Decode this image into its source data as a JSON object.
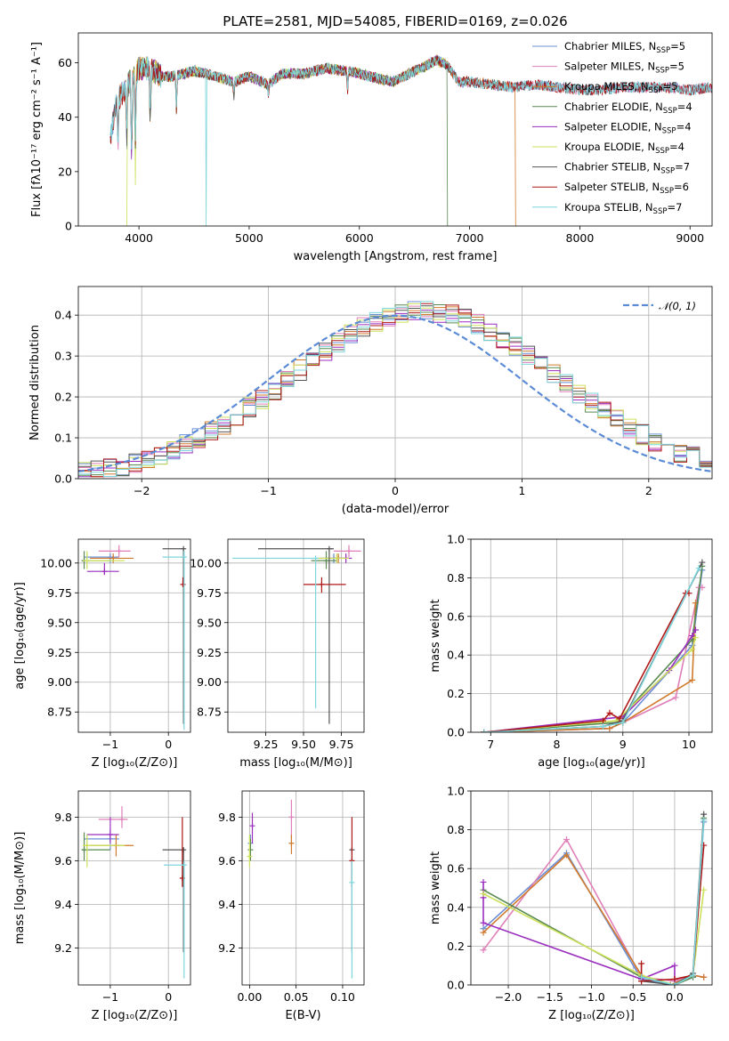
{
  "figure": {
    "title": "PLATE=2581, MJD=54085, FIBERID=0169, z=0.026"
  },
  "series": [
    {
      "key": "chab_miles",
      "name": "Chabrier MILES, N",
      "sub": "SSP",
      "n": "=5",
      "color": "#6b8fd6"
    },
    {
      "key": "salp_miles",
      "name": "Salpeter MILES, N",
      "sub": "SSP",
      "n": "=5",
      "color": "#e07fb8"
    },
    {
      "key": "krou_miles",
      "name": "Kroupa MILES, N",
      "sub": "SSP",
      "n": "=5",
      "color": "#d07a2e"
    },
    {
      "key": "chab_elodie",
      "name": "Chabrier ELODIE, N",
      "sub": "SSP",
      "n": "=4",
      "color": "#5a8a52"
    },
    {
      "key": "salp_elodie",
      "name": "Salpeter ELODIE, N",
      "sub": "SSP",
      "n": "=4",
      "color": "#9b2fbf"
    },
    {
      "key": "krou_elodie",
      "name": "Kroupa ELODIE, N",
      "sub": "SSP",
      "n": "=4",
      "color": "#cce05a"
    },
    {
      "key": "chab_stelib",
      "name": "Chabrier STELIB, N",
      "sub": "SSP",
      "n": "=7",
      "color": "#555555"
    },
    {
      "key": "salp_stelib",
      "name": "Salpeter STELIB, N",
      "sub": "SSP",
      "n": "=6",
      "color": "#b01818"
    },
    {
      "key": "krou_stelib",
      "name": "Kroupa STELIB, N",
      "sub": "SSP",
      "n": "=7",
      "color": "#7dd6dc"
    }
  ],
  "chart_data": [
    {
      "id": "spectrum",
      "type": "line",
      "xlabel": "wavelength [Angstrom, rest frame]",
      "ylabel": "Flux [fλ10⁻¹⁷ erg cm⁻² s⁻¹ A⁻¹]",
      "xlim": [
        3450,
        9200
      ],
      "ylim": [
        0,
        71
      ],
      "xticks": [
        4000,
        5000,
        6000,
        7000,
        8000,
        9000
      ],
      "yticks": [
        0,
        20,
        40,
        60
      ],
      "legend_position": "top-right",
      "grid": false,
      "continuum": [
        [
          3740,
          33
        ],
        [
          3800,
          46
        ],
        [
          3900,
          52
        ],
        [
          4000,
          58
        ],
        [
          4100,
          58
        ],
        [
          4200,
          55
        ],
        [
          4300,
          55
        ],
        [
          4500,
          57
        ],
        [
          4700,
          55
        ],
        [
          4861,
          53
        ],
        [
          5000,
          55
        ],
        [
          5175,
          52
        ],
        [
          5300,
          56
        ],
        [
          5500,
          56
        ],
        [
          5700,
          58
        ],
        [
          5893,
          57
        ],
        [
          6100,
          55
        ],
        [
          6300,
          53
        ],
        [
          6500,
          57
        ],
        [
          6563,
          58
        ],
        [
          6700,
          61
        ],
        [
          6800,
          59
        ],
        [
          6900,
          53
        ],
        [
          7000,
          53
        ],
        [
          7200,
          52
        ],
        [
          7400,
          51
        ],
        [
          7600,
          52
        ],
        [
          7800,
          51
        ],
        [
          8000,
          50
        ],
        [
          8200,
          50
        ],
        [
          8400,
          51
        ],
        [
          8600,
          51
        ],
        [
          8800,
          51
        ],
        [
          9000,
          50
        ],
        [
          9200,
          51
        ]
      ],
      "absorption_lines": [
        [
          3810,
          30
        ],
        [
          3889,
          32
        ],
        [
          3934,
          26
        ],
        [
          3968,
          28
        ],
        [
          4102,
          40
        ],
        [
          4340,
          43
        ],
        [
          4861,
          48
        ],
        [
          5175,
          49
        ],
        [
          5893,
          50
        ]
      ],
      "dropouts": {
        "krou_elodie": [
          [
            3890,
            0
          ],
          [
            3968,
            15
          ]
        ],
        "krou_stelib": [
          [
            4610,
            0
          ]
        ],
        "chab_elodie": [
          [
            6800,
            0
          ]
        ],
        "krou_miles": [
          [
            7420,
            0
          ]
        ]
      },
      "coverage": {
        "chab_miles": [
          3740,
          9200
        ],
        "salp_miles": [
          3740,
          9200
        ],
        "krou_miles": [
          3740,
          7420
        ],
        "chab_elodie": [
          3890,
          6800
        ],
        "salp_elodie": [
          3890,
          6800
        ],
        "krou_elodie": [
          3890,
          6800
        ],
        "chab_stelib": [
          3740,
          9200
        ],
        "salp_stelib": [
          3740,
          9200
        ],
        "krou_stelib": [
          3740,
          9200
        ]
      }
    },
    {
      "id": "residuals",
      "type": "line",
      "xlabel": "(data-model)/error",
      "ylabel": "Normed distribution",
      "xlim": [
        -2.5,
        2.5
      ],
      "ylim": [
        0,
        0.47
      ],
      "xticks": [
        -2,
        -1,
        0,
        1,
        2
      ],
      "yticks": [
        0.0,
        0.1,
        0.2,
        0.3,
        0.4
      ],
      "grid": true,
      "legend": "𝒩(0, 1)",
      "legend_position": "top-right",
      "gaussian": {
        "mean": 0,
        "sigma": 1,
        "color": "#5b8bd6"
      },
      "bin_width": 0.1,
      "bin_start": -2.5
    },
    {
      "id": "age_vs_Z",
      "type": "scatter",
      "xlabel": "Z [log₁₀(Z/Z⊙)]",
      "ylabel": "age  [log₁₀(age/yr)]",
      "xlim": [
        -1.55,
        0.38
      ],
      "ylim": [
        8.58,
        10.2
      ],
      "xticks": [
        -1,
        0
      ],
      "yticks": [
        8.75,
        9.0,
        9.25,
        9.5,
        9.75,
        10.0
      ],
      "grid": true,
      "points": [
        {
          "s": "chab_miles",
          "x": -1.0,
          "y": 10.05,
          "xl": -1.45,
          "xh": -0.85,
          "yl": 10.0,
          "yh": 10.08
        },
        {
          "s": "salp_miles",
          "x": -0.85,
          "y": 10.1,
          "xl": -1.2,
          "xh": -0.65,
          "yl": 10.05,
          "yh": 10.15
        },
        {
          "s": "krou_miles",
          "x": -0.95,
          "y": 10.04,
          "xl": -1.35,
          "xh": -0.6,
          "yl": 10.0,
          "yh": 10.08
        },
        {
          "s": "chab_elodie",
          "x": -1.45,
          "y": 10.02,
          "xl": -1.48,
          "xh": -1.0,
          "yl": 9.95,
          "yh": 10.1
        },
        {
          "s": "salp_elodie",
          "x": -1.1,
          "y": 9.93,
          "xl": -1.4,
          "xh": -0.85,
          "yl": 9.9,
          "yh": 10.0
        },
        {
          "s": "krou_elodie",
          "x": -1.4,
          "y": 10.02,
          "xl": -1.47,
          "xh": -0.75,
          "yl": 9.95,
          "yh": 10.1
        },
        {
          "s": "chab_stelib",
          "x": 0.26,
          "y": 10.12,
          "xl": -0.1,
          "xh": 0.28,
          "yl": 8.65,
          "yh": 10.12
        },
        {
          "s": "salp_stelib",
          "x": 0.25,
          "y": 9.82,
          "xl": 0.24,
          "xh": 0.27,
          "yl": 9.8,
          "yh": 9.88
        },
        {
          "s": "krou_stelib",
          "x": 0.27,
          "y": 10.05,
          "xl": -0.1,
          "xh": 0.28,
          "yl": 8.6,
          "yh": 10.1
        }
      ]
    },
    {
      "id": "age_vs_mass",
      "type": "scatter",
      "xlabel": "mass [log₁₀(M/M⊙)]",
      "ylabel": "",
      "xlim": [
        9.0,
        9.9
      ],
      "ylim": [
        8.58,
        10.2
      ],
      "xticks": [
        9.25,
        9.5,
        9.75
      ],
      "yticks": [
        8.75,
        9.0,
        9.25,
        9.5,
        9.75,
        10.0
      ],
      "grid": true,
      "points": [
        {
          "s": "chab_miles",
          "x": 9.7,
          "y": 10.04,
          "xl": 9.6,
          "xh": 9.8,
          "yl": 10.0,
          "yh": 10.08
        },
        {
          "s": "salp_miles",
          "x": 9.8,
          "y": 10.1,
          "xl": 9.7,
          "xh": 9.88,
          "yl": 10.05,
          "yh": 10.15
        },
        {
          "s": "krou_miles",
          "x": 9.73,
          "y": 10.04,
          "xl": 9.6,
          "xh": 9.8,
          "yl": 10.0,
          "yh": 10.08
        },
        {
          "s": "chab_elodie",
          "x": 9.65,
          "y": 10.02,
          "xl": 9.55,
          "xh": 9.72,
          "yl": 9.95,
          "yh": 10.1
        },
        {
          "s": "salp_elodie",
          "x": 9.78,
          "y": 10.04,
          "xl": 9.7,
          "xh": 9.82,
          "yl": 10.0,
          "yh": 10.08
        },
        {
          "s": "krou_elodie",
          "x": 9.72,
          "y": 10.04,
          "xl": 9.6,
          "xh": 9.8,
          "yl": 10.0,
          "yh": 10.08
        },
        {
          "s": "chab_stelib",
          "x": 9.67,
          "y": 10.12,
          "xl": 9.2,
          "xh": 9.7,
          "yl": 8.65,
          "yh": 10.12
        },
        {
          "s": "salp_stelib",
          "x": 9.62,
          "y": 9.82,
          "xl": 9.5,
          "xh": 9.78,
          "yl": 9.75,
          "yh": 9.88
        },
        {
          "s": "krou_stelib",
          "x": 9.58,
          "y": 10.04,
          "xl": 9.03,
          "xh": 9.6,
          "yl": 8.78,
          "yh": 10.04
        }
      ]
    },
    {
      "id": "mass_weight_vs_age",
      "type": "line",
      "xlabel": "age  [log₁₀(age/yr)]",
      "ylabel": "mass weight",
      "xlim": [
        6.7,
        10.35
      ],
      "ylim": [
        0,
        1.0
      ],
      "xticks": [
        7,
        8,
        9,
        10
      ],
      "yticks": [
        0.0,
        0.2,
        0.4,
        0.6,
        0.8,
        1.0
      ],
      "grid": true,
      "series": [
        {
          "s": "chab_miles",
          "x": [
            6.9,
            8.8,
            9.0,
            10.05,
            10.2
          ],
          "y": [
            0.0,
            0.02,
            0.05,
            0.45,
            0.84
          ]
        },
        {
          "s": "salp_miles",
          "x": [
            6.9,
            8.8,
            9.0,
            9.8,
            10.15,
            10.2
          ],
          "y": [
            0.0,
            0.02,
            0.05,
            0.18,
            0.75,
            0.75
          ]
        },
        {
          "s": "krou_miles",
          "x": [
            6.9,
            8.8,
            9.0,
            10.05,
            10.1
          ],
          "y": [
            0.0,
            0.02,
            0.05,
            0.27,
            0.67
          ]
        },
        {
          "s": "chab_elodie",
          "x": [
            6.9,
            8.9,
            10.05,
            10.2
          ],
          "y": [
            0.0,
            0.05,
            0.48,
            0.86
          ]
        },
        {
          "s": "salp_elodie",
          "x": [
            6.9,
            9.0,
            9.7,
            10.05,
            10.1
          ],
          "y": [
            0.0,
            0.08,
            0.32,
            0.5,
            0.53
          ]
        },
        {
          "s": "krou_elodie",
          "x": [
            6.9,
            8.9,
            10.05,
            10.1
          ],
          "y": [
            0.0,
            0.06,
            0.43,
            0.49
          ]
        },
        {
          "s": "chab_stelib",
          "x": [
            6.9,
            8.7,
            9.0,
            10.2
          ],
          "y": [
            0.0,
            0.03,
            0.06,
            0.88
          ]
        },
        {
          "s": "salp_stelib",
          "x": [
            6.9,
            8.7,
            8.8,
            8.95,
            9.95,
            10.0
          ],
          "y": [
            0.0,
            0.06,
            0.1,
            0.07,
            0.72,
            0.72
          ]
        },
        {
          "s": "krou_stelib",
          "x": [
            6.9,
            8.7,
            9.0,
            10.15
          ],
          "y": [
            0.0,
            0.03,
            0.05,
            0.85
          ]
        }
      ]
    },
    {
      "id": "mass_vs_Z",
      "type": "scatter",
      "xlabel": "Z [log₁₀(Z/Z⊙)]",
      "ylabel": "mass [log₁₀(M/M⊙)]",
      "xlim": [
        -1.55,
        0.38
      ],
      "ylim": [
        9.03,
        9.92
      ],
      "xticks": [
        -1,
        0
      ],
      "yticks": [
        9.2,
        9.4,
        9.6,
        9.8
      ],
      "grid": true,
      "points": [
        {
          "s": "chab_miles",
          "x": -1.0,
          "y": 9.7,
          "xl": -1.45,
          "xh": -0.85,
          "yl": 9.65,
          "yh": 9.75
        },
        {
          "s": "salp_miles",
          "x": -0.8,
          "y": 9.79,
          "xl": -1.2,
          "xh": -0.7,
          "yl": 9.75,
          "yh": 9.85
        },
        {
          "s": "krou_miles",
          "x": -0.9,
          "y": 9.67,
          "xl": -1.35,
          "xh": -0.6,
          "yl": 9.62,
          "yh": 9.72
        },
        {
          "s": "chab_elodie",
          "x": -1.45,
          "y": 9.65,
          "xl": -1.48,
          "xh": -1.0,
          "yl": 9.6,
          "yh": 9.73
        },
        {
          "s": "salp_elodie",
          "x": -1.0,
          "y": 9.72,
          "xl": -1.4,
          "xh": -0.85,
          "yl": 9.68,
          "yh": 9.8
        },
        {
          "s": "krou_elodie",
          "x": -1.4,
          "y": 9.67,
          "xl": -1.47,
          "xh": -0.75,
          "yl": 9.57,
          "yh": 9.72
        },
        {
          "s": "chab_stelib",
          "x": 0.26,
          "y": 9.65,
          "xl": -0.1,
          "xh": 0.28,
          "yl": 9.18,
          "yh": 9.66
        },
        {
          "s": "salp_stelib",
          "x": 0.24,
          "y": 9.52,
          "xl": 0.23,
          "xh": 0.26,
          "yl": 9.48,
          "yh": 9.8
        },
        {
          "s": "krou_stelib",
          "x": 0.27,
          "y": 9.58,
          "xl": -0.08,
          "xh": 0.28,
          "yl": 9.06,
          "yh": 9.6
        }
      ]
    },
    {
      "id": "mass_vs_ebv",
      "type": "scatter",
      "xlabel": "E(B-V)",
      "ylabel": "",
      "xlim": [
        -0.008,
        0.123
      ],
      "ylim": [
        9.03,
        9.92
      ],
      "xticks": [
        0.0,
        0.05,
        0.1
      ],
      "yticks": [
        9.2,
        9.4,
        9.6,
        9.8
      ],
      "grid": true,
      "points": [
        {
          "s": "chab_miles",
          "x": 0.001,
          "y": 9.68,
          "yl": 9.6,
          "yh": 9.72
        },
        {
          "s": "salp_miles",
          "x": 0.045,
          "y": 9.8,
          "yl": 9.7,
          "yh": 9.88
        },
        {
          "s": "krou_miles",
          "x": 0.045,
          "y": 9.68,
          "yl": 9.63,
          "yh": 9.72
        },
        {
          "s": "chab_elodie",
          "x": 0.001,
          "y": 9.65,
          "yl": 9.6,
          "yh": 9.7
        },
        {
          "s": "salp_elodie",
          "x": 0.003,
          "y": 9.76,
          "yl": 9.68,
          "yh": 9.82
        },
        {
          "s": "krou_elodie",
          "x": 0.0,
          "y": 9.62,
          "yl": 9.57,
          "yh": 9.72
        },
        {
          "s": "chab_stelib",
          "x": 0.11,
          "y": 9.65,
          "yl": 9.18,
          "yh": 9.66
        },
        {
          "s": "salp_stelib",
          "x": 0.11,
          "y": 9.6,
          "yl": 9.48,
          "yh": 9.8
        },
        {
          "s": "krou_stelib",
          "x": 0.11,
          "y": 9.5,
          "yl": 9.06,
          "yh": 9.6
        }
      ]
    },
    {
      "id": "mass_weight_vs_Z",
      "type": "line",
      "xlabel": "Z [log₁₀(Z/Z⊙)]",
      "ylabel": "mass weight",
      "xlim": [
        -2.45,
        0.45
      ],
      "ylim": [
        0,
        1.0
      ],
      "xticks": [
        -2.0,
        -1.5,
        -1.0,
        -0.5,
        0.0
      ],
      "yticks": [
        0.0,
        0.2,
        0.4,
        0.6,
        0.8,
        1.0
      ],
      "grid": true,
      "series": [
        {
          "s": "chab_miles",
          "x": [
            -2.3,
            -1.3,
            -0.4,
            0.0,
            0.22,
            0.35
          ],
          "y": [
            0.29,
            0.68,
            0.03,
            0.0,
            0.04,
            0.84
          ]
        },
        {
          "s": "salp_miles",
          "x": [
            -2.3,
            -1.3,
            -0.4,
            0.0,
            0.22,
            0.35
          ],
          "y": [
            0.18,
            0.75,
            0.04,
            0.02,
            0.05,
            0.04
          ]
        },
        {
          "s": "krou_miles",
          "x": [
            -2.3,
            -1.3,
            -0.4,
            -0.05,
            0.22,
            0.35
          ],
          "y": [
            0.27,
            0.67,
            0.05,
            0.0,
            0.05,
            0.04
          ]
        },
        {
          "s": "chab_elodie",
          "x": [
            -2.3,
            -0.4,
            0.0,
            0.22,
            0.35
          ],
          "y": [
            0.49,
            0.04,
            0.0,
            0.04,
            0.86
          ]
        },
        {
          "s": "salp_elodie",
          "x": [
            -2.3,
            -2.3,
            -2.3,
            -0.4,
            0.0,
            0.0
          ],
          "y": [
            0.53,
            0.45,
            0.32,
            0.03,
            0.1,
            0.0
          ]
        },
        {
          "s": "krou_elodie",
          "x": [
            -2.3,
            -0.4,
            0.0,
            0.22,
            0.35
          ],
          "y": [
            0.47,
            0.05,
            0.0,
            0.05,
            0.49
          ]
        },
        {
          "s": "chab_stelib",
          "x": [
            -0.4,
            0.0,
            0.22,
            0.35
          ],
          "y": [
            0.02,
            0.0,
            0.06,
            0.88
          ]
        },
        {
          "s": "salp_stelib",
          "x": [
            -0.4,
            -0.4,
            0.0,
            0.22,
            0.35
          ],
          "y": [
            0.11,
            0.02,
            0.03,
            0.05,
            0.72
          ]
        },
        {
          "s": "krou_stelib",
          "x": [
            -0.4,
            0.0,
            0.22,
            0.35
          ],
          "y": [
            0.04,
            0.0,
            0.05,
            0.85
          ]
        }
      ]
    }
  ]
}
